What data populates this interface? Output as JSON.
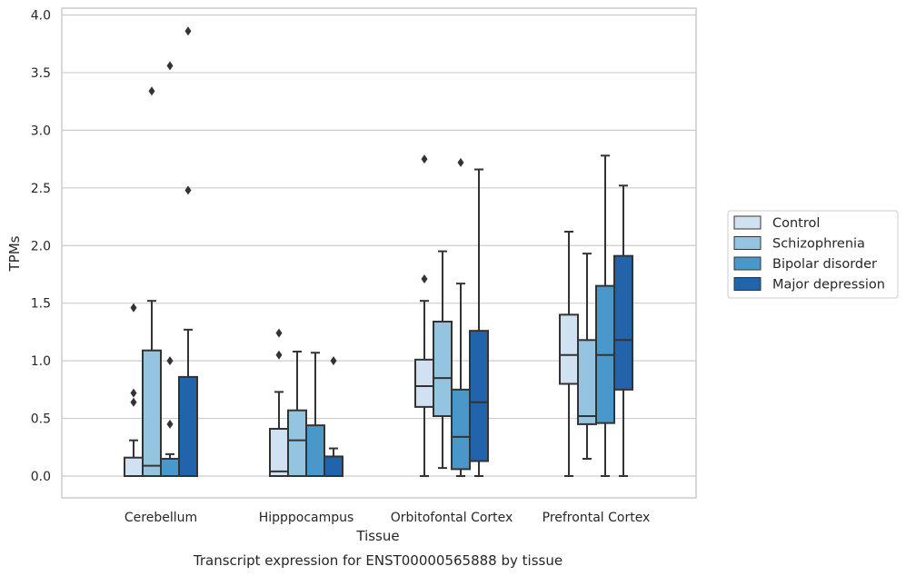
{
  "chart_data": {
    "type": "box",
    "title": "Transcript expression for ENST00000565888 by tissue",
    "xlabel": "Tissue",
    "ylabel": "TPMs",
    "ylim": [
      -0.18,
      4.05
    ],
    "yticks": [
      "0.0",
      "0.5",
      "1.0",
      "1.5",
      "2.0",
      "2.5",
      "3.0",
      "3.5",
      "4.0"
    ],
    "grid": true,
    "legend_position": "right",
    "categories": [
      "Cerebellum",
      "Hipppocampus",
      "Orbitofontal Cortex",
      "Prefrontal Cortex"
    ],
    "series": [
      {
        "name": "Control",
        "color": "#d0e1f2",
        "boxes": [
          {
            "q1": 0.0,
            "median": 0.0,
            "q3": 0.16,
            "whisker_low": 0.0,
            "whisker_high": 0.31,
            "outliers": [
              0.64,
              0.72,
              1.46
            ]
          },
          {
            "q1": 0.0,
            "median": 0.04,
            "q3": 0.41,
            "whisker_low": 0.0,
            "whisker_high": 0.73,
            "outliers": [
              1.05,
              1.24
            ]
          },
          {
            "q1": 0.6,
            "median": 0.78,
            "q3": 1.01,
            "whisker_low": 0.0,
            "whisker_high": 1.52,
            "outliers": [
              1.71,
              2.75
            ]
          },
          {
            "q1": 0.8,
            "median": 1.05,
            "q3": 1.4,
            "whisker_low": 0.0,
            "whisker_high": 2.12,
            "outliers": []
          }
        ]
      },
      {
        "name": "Schizophrenia",
        "color": "#94c4df",
        "boxes": [
          {
            "q1": 0.0,
            "median": 0.09,
            "q3": 1.09,
            "whisker_low": 0.0,
            "whisker_high": 1.52,
            "outliers": [
              3.34
            ]
          },
          {
            "q1": 0.0,
            "median": 0.31,
            "q3": 0.57,
            "whisker_low": 0.0,
            "whisker_high": 1.08,
            "outliers": []
          },
          {
            "q1": 0.52,
            "median": 0.85,
            "q3": 1.34,
            "whisker_low": 0.07,
            "whisker_high": 1.95,
            "outliers": []
          },
          {
            "q1": 0.45,
            "median": 0.52,
            "q3": 1.18,
            "whisker_low": 0.15,
            "whisker_high": 1.93,
            "outliers": []
          }
        ]
      },
      {
        "name": "Bipolar disorder",
        "color": "#4a98c9",
        "boxes": [
          {
            "q1": 0.0,
            "median": 0.0,
            "q3": 0.15,
            "whisker_low": 0.0,
            "whisker_high": 0.19,
            "outliers": [
              0.45,
              1.0,
              3.56
            ]
          },
          {
            "q1": 0.0,
            "median": 0.0,
            "q3": 0.44,
            "whisker_low": 0.0,
            "whisker_high": 1.07,
            "outliers": []
          },
          {
            "q1": 0.06,
            "median": 0.34,
            "q3": 0.75,
            "whisker_low": 0.0,
            "whisker_high": 1.67,
            "outliers": [
              2.72
            ]
          },
          {
            "q1": 0.46,
            "median": 1.05,
            "q3": 1.65,
            "whisker_low": 0.0,
            "whisker_high": 2.78,
            "outliers": []
          }
        ]
      },
      {
        "name": "Major depression",
        "color": "#2164ab",
        "boxes": [
          {
            "q1": 0.0,
            "median": 0.0,
            "q3": 0.86,
            "whisker_low": 0.0,
            "whisker_high": 1.27,
            "outliers": [
              2.48,
              3.86
            ]
          },
          {
            "q1": 0.0,
            "median": 0.0,
            "q3": 0.17,
            "whisker_low": 0.0,
            "whisker_high": 0.24,
            "outliers": [
              1.0
            ]
          },
          {
            "q1": 0.13,
            "median": 0.64,
            "q3": 1.26,
            "whisker_low": 0.0,
            "whisker_high": 2.66,
            "outliers": []
          },
          {
            "q1": 0.75,
            "median": 1.18,
            "q3": 1.91,
            "whisker_low": 0.0,
            "whisker_high": 2.52,
            "outliers": []
          }
        ]
      }
    ]
  }
}
